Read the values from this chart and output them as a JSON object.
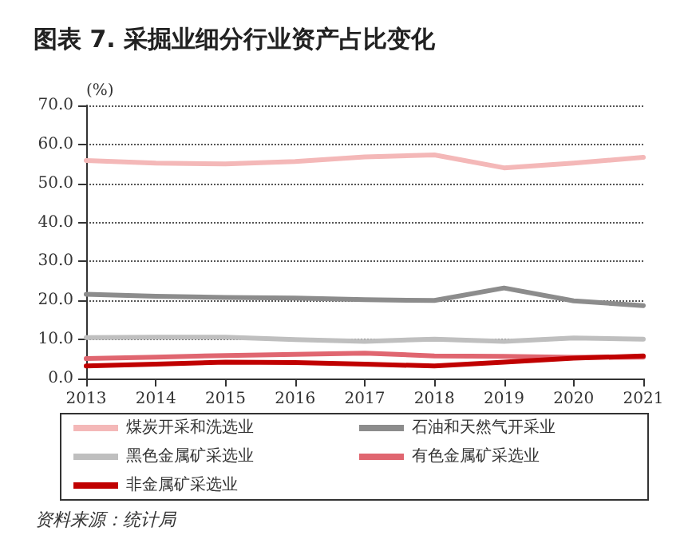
{
  "chart_data": {
    "type": "line",
    "title": "图表 7. 采掘业细分行业资产占比变化",
    "ylabel": "(%)",
    "annotations": [
      "资料来源：统计局"
    ],
    "categories": [
      "2013",
      "2014",
      "2015",
      "2016",
      "2017",
      "2018",
      "2019",
      "2020",
      "2021"
    ],
    "series": [
      {
        "name": "煤炭开采和洗选业",
        "color": "#f4b8b8",
        "values": [
          55.9,
          55.2,
          55.0,
          55.6,
          56.8,
          57.3,
          54.0,
          55.2,
          56.7
        ]
      },
      {
        "name": "石油和天然气开采业",
        "color": "#8c8c8c",
        "values": [
          21.6,
          21.1,
          20.8,
          20.6,
          20.2,
          20.0,
          23.2,
          19.9,
          18.7
        ]
      },
      {
        "name": "黑色金属矿采选业",
        "color": "#bfbfbf",
        "values": [
          10.5,
          10.6,
          10.6,
          10.0,
          9.5,
          10.1,
          9.5,
          10.4,
          10.1
        ]
      },
      {
        "name": "有色金属矿采选业",
        "color": "#e06670",
        "values": [
          5.1,
          5.5,
          5.9,
          6.2,
          6.5,
          5.8,
          5.7,
          5.4,
          5.5
        ]
      },
      {
        "name": "非金属矿采选业",
        "color": "#c00000",
        "values": [
          3.2,
          3.7,
          4.2,
          4.1,
          3.7,
          3.2,
          4.2,
          5.2,
          5.8
        ]
      }
    ],
    "ylim": [
      0,
      70
    ],
    "yticks": [
      {
        "value": 0,
        "label": "0.0"
      },
      {
        "value": 10,
        "label": "10.0"
      },
      {
        "value": 20,
        "label": "20.0"
      },
      {
        "value": 30,
        "label": "30.0"
      },
      {
        "value": 40,
        "label": "40.0"
      },
      {
        "value": 50,
        "label": "50.0"
      },
      {
        "value": 60,
        "label": "60.0"
      },
      {
        "value": 70,
        "label": "70.0"
      }
    ],
    "grid": "y",
    "legend": "bottom",
    "marker": "none",
    "line_style": "solid"
  }
}
